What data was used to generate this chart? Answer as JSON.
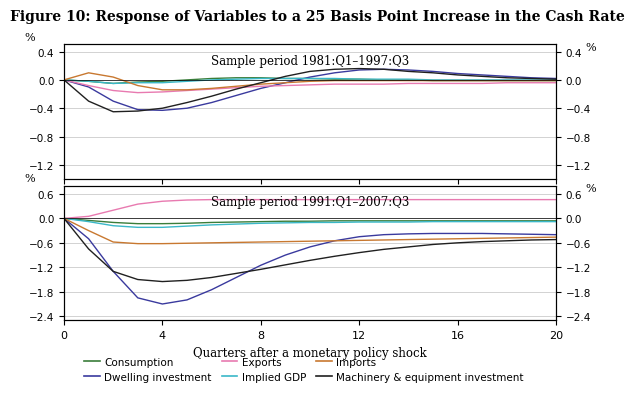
{
  "title": "Figure 10: Response of Variables to a 25 Basis Point Increase in the Cash Rate",
  "title_fontsize": 10,
  "subtitle1": "Sample period 1981:Q1–1997:Q3",
  "subtitle2": "Sample period 1991:Q1–2007:Q3",
  "xlabel": "Quarters after a monetary policy shock",
  "ylabel_left": "%",
  "ylabel_right": "%",
  "x": [
    0,
    1,
    2,
    3,
    4,
    5,
    6,
    7,
    8,
    9,
    10,
    11,
    12,
    13,
    14,
    15,
    16,
    17,
    18,
    19,
    20
  ],
  "panel1": {
    "ylim": [
      -1.4,
      0.5
    ],
    "yticks": [
      0.4,
      0.0,
      -0.4,
      -0.8,
      -1.2
    ],
    "consumption": [
      0.0,
      -0.02,
      -0.05,
      -0.03,
      -0.02,
      0.0,
      0.02,
      0.03,
      0.03,
      0.02,
      0.02,
      0.01,
      0.01,
      0.0,
      0.0,
      -0.01,
      -0.01,
      -0.01,
      -0.01,
      -0.01,
      -0.01
    ],
    "dwelling": [
      0.0,
      -0.1,
      -0.3,
      -0.42,
      -0.43,
      -0.4,
      -0.32,
      -0.22,
      -0.12,
      -0.04,
      0.04,
      0.1,
      0.14,
      0.15,
      0.14,
      0.12,
      0.09,
      0.07,
      0.05,
      0.03,
      0.02
    ],
    "exports": [
      0.0,
      -0.08,
      -0.15,
      -0.18,
      -0.17,
      -0.15,
      -0.13,
      -0.11,
      -0.09,
      -0.08,
      -0.07,
      -0.06,
      -0.06,
      -0.06,
      -0.05,
      -0.05,
      -0.05,
      -0.05,
      -0.04,
      -0.04,
      -0.04
    ],
    "implied_gdp": [
      0.0,
      -0.02,
      -0.05,
      -0.04,
      -0.04,
      -0.02,
      0.0,
      0.01,
      0.02,
      0.02,
      0.02,
      0.02,
      0.01,
      0.01,
      0.01,
      0.0,
      0.0,
      0.0,
      0.0,
      0.0,
      0.0
    ],
    "imports": [
      0.0,
      0.1,
      0.04,
      -0.08,
      -0.14,
      -0.14,
      -0.12,
      -0.09,
      -0.06,
      -0.04,
      -0.02,
      -0.01,
      -0.01,
      -0.01,
      -0.01,
      -0.01,
      -0.01,
      -0.01,
      -0.01,
      -0.01,
      -0.01
    ],
    "machinery": [
      0.0,
      -0.3,
      -0.45,
      -0.44,
      -0.4,
      -0.32,
      -0.23,
      -0.13,
      -0.04,
      0.05,
      0.12,
      0.15,
      0.16,
      0.15,
      0.12,
      0.1,
      0.07,
      0.05,
      0.03,
      0.02,
      0.01
    ]
  },
  "panel2": {
    "ylim": [
      -2.5,
      0.8
    ],
    "yticks": [
      0.6,
      0.0,
      -0.6,
      -1.2,
      -1.8,
      -2.4
    ],
    "consumption": [
      0.0,
      -0.05,
      -0.1,
      -0.13,
      -0.13,
      -0.12,
      -0.1,
      -0.09,
      -0.08,
      -0.07,
      -0.07,
      -0.06,
      -0.06,
      -0.06,
      -0.06,
      -0.06,
      -0.06,
      -0.06,
      -0.06,
      -0.06,
      -0.06
    ],
    "dwelling": [
      0.0,
      -0.5,
      -1.3,
      -1.95,
      -2.1,
      -2.0,
      -1.75,
      -1.45,
      -1.15,
      -0.9,
      -0.7,
      -0.55,
      -0.45,
      -0.4,
      -0.38,
      -0.37,
      -0.37,
      -0.37,
      -0.38,
      -0.39,
      -0.4
    ],
    "exports": [
      0.0,
      0.05,
      0.2,
      0.35,
      0.42,
      0.45,
      0.46,
      0.46,
      0.46,
      0.46,
      0.46,
      0.46,
      0.46,
      0.46,
      0.46,
      0.46,
      0.46,
      0.46,
      0.46,
      0.46,
      0.46
    ],
    "implied_gdp": [
      0.0,
      -0.08,
      -0.18,
      -0.22,
      -0.22,
      -0.19,
      -0.16,
      -0.14,
      -0.12,
      -0.11,
      -0.1,
      -0.1,
      -0.09,
      -0.09,
      -0.09,
      -0.08,
      -0.08,
      -0.08,
      -0.08,
      -0.08,
      -0.08
    ],
    "imports": [
      0.0,
      -0.3,
      -0.58,
      -0.62,
      -0.62,
      -0.61,
      -0.6,
      -0.59,
      -0.58,
      -0.57,
      -0.56,
      -0.55,
      -0.54,
      -0.53,
      -0.52,
      -0.51,
      -0.5,
      -0.49,
      -0.48,
      -0.47,
      -0.46
    ],
    "machinery": [
      0.0,
      -0.75,
      -1.3,
      -1.5,
      -1.55,
      -1.52,
      -1.45,
      -1.35,
      -1.25,
      -1.14,
      -1.03,
      -0.93,
      -0.84,
      -0.76,
      -0.7,
      -0.64,
      -0.6,
      -0.57,
      -0.55,
      -0.53,
      -0.52
    ]
  },
  "colors": {
    "consumption": "#3a7d3a",
    "dwelling": "#3a3a9e",
    "exports": "#e87ab0",
    "implied_gdp": "#3ab8c8",
    "imports": "#c87830",
    "machinery": "#202020"
  },
  "legend": [
    {
      "label": "Consumption",
      "color": "#3a7d3a"
    },
    {
      "label": "Dwelling investment",
      "color": "#3a3a9e"
    },
    {
      "label": "Exports",
      "color": "#e87ab0"
    },
    {
      "label": "Implied GDP",
      "color": "#3ab8c8"
    },
    {
      "label": "Imports",
      "color": "#c87830"
    },
    {
      "label": "Machinery & equipment investment",
      "color": "#202020"
    }
  ],
  "xticks": [
    0,
    4,
    8,
    12,
    16,
    20
  ],
  "background_color": "#ffffff",
  "grid_color": "#c0c0c0"
}
